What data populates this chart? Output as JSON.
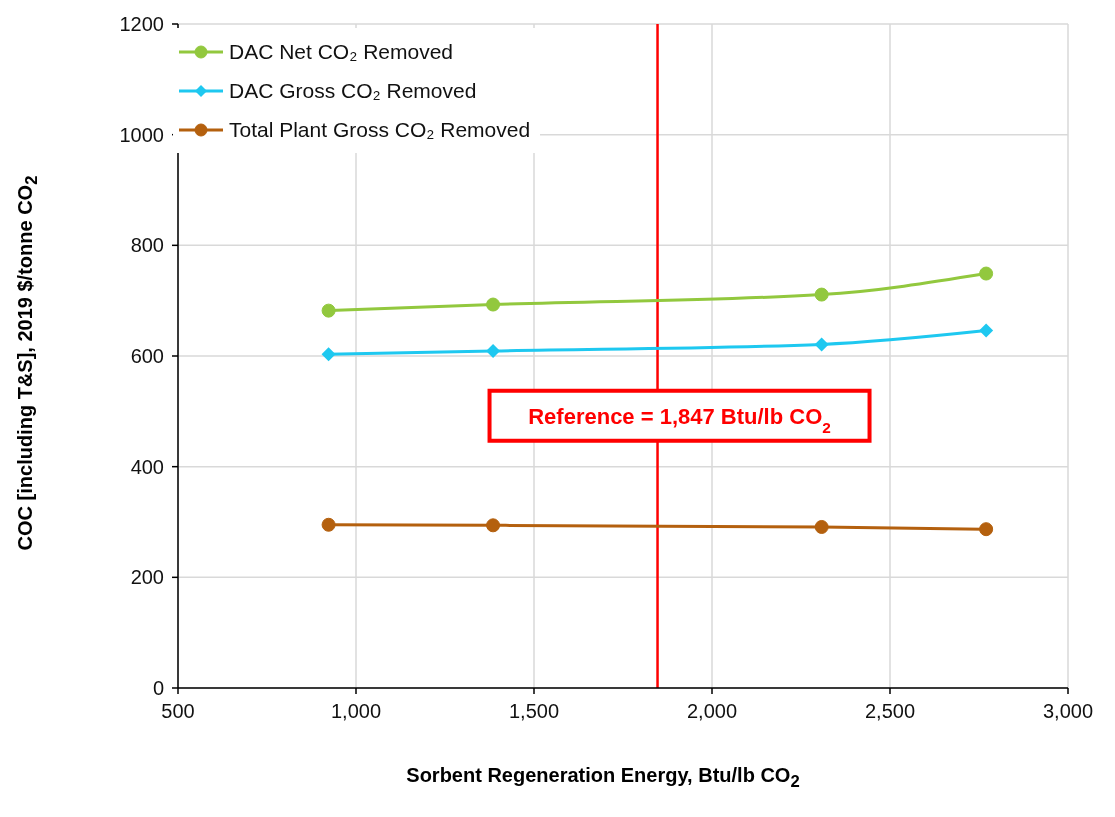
{
  "chart_data": {
    "type": "line",
    "xlabel": "Sorbent Regeneration Energy, Btu/lb CO$_{2}$",
    "ylabel": "COC [including T&S], 2019 $/tonne CO$_{2}$",
    "x": [
      923,
      1385,
      2308,
      2770
    ],
    "series": [
      {
        "name": "DAC Net CO₂ Removed",
        "color": "#92c83e",
        "marker": "circle",
        "values": [
          682,
          693,
          711,
          749
        ]
      },
      {
        "name": "DAC Gross CO₂ Removed",
        "color": "#1ec8f0",
        "marker": "diamond",
        "values": [
          603,
          609,
          621,
          646
        ]
      },
      {
        "name": "Total Plant Gross CO₂ Removed",
        "color": "#b4600e",
        "marker": "circle",
        "values": [
          295,
          294,
          291,
          287
        ]
      }
    ],
    "xlim": [
      500,
      3000
    ],
    "xticks": [
      {
        "value": 500,
        "label": "500"
      },
      {
        "value": 1000,
        "label": "1,000"
      },
      {
        "value": 1500,
        "label": "1,500"
      },
      {
        "value": 2000,
        "label": "2,000"
      },
      {
        "value": 2500,
        "label": "2,500"
      },
      {
        "value": 3000,
        "label": "3,000"
      }
    ],
    "ylim": [
      0,
      1200
    ],
    "yticks": [
      0,
      200,
      400,
      600,
      800,
      1000,
      1200
    ],
    "ref_lines": [
      {
        "axis": "x",
        "value": 1847,
        "label": "Reference = 1,847 Btu/lb CO$_{2}$",
        "color": "#ff0000"
      }
    ],
    "grid": true,
    "legend": "top left",
    "line_style": "solid"
  }
}
